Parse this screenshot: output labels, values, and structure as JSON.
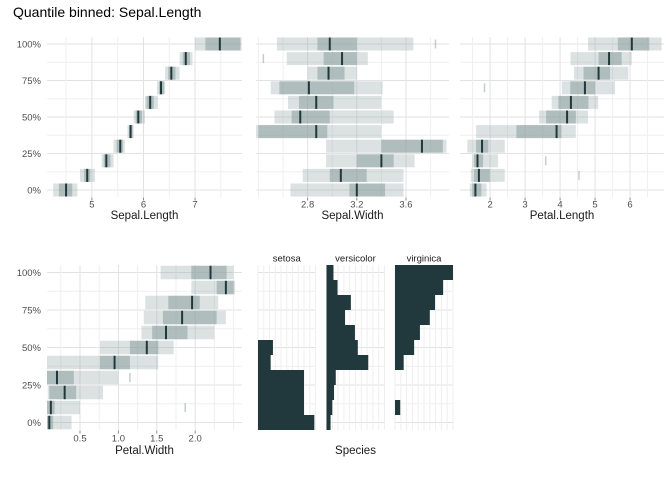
{
  "title": "Quantile binned: Sepal.Length",
  "y_axis": {
    "tick_labels": [
      "100%",
      "75%",
      "50%",
      "25%",
      "0%"
    ],
    "tick_values": [
      100,
      75,
      50,
      25,
      0
    ],
    "minor_values": [
      87.5,
      62.5,
      37.5,
      12.5
    ]
  },
  "quantile_levels": [
    100,
    90,
    80,
    70,
    60,
    50,
    40,
    30,
    20,
    10,
    0
  ],
  "colors": {
    "band_base": "#8c9e9e",
    "median_line": "#20383b",
    "bar": "#21393d",
    "grid_major": "#e2e2e2",
    "grid_minor": "#efefef",
    "axis_text": "#4d4d4d",
    "title_text": "#000000",
    "tick_mark": "#8a8a8a"
  },
  "chart_data": [
    {
      "type": "quantile-band",
      "id": "sepal-length",
      "xlabel": "Sepal.Length",
      "xlim": [
        4.13,
        7.91
      ],
      "x_major": [
        5,
        6,
        7
      ],
      "x_major_labels": [
        "5",
        "6",
        "7"
      ],
      "x_minor": [
        4.5,
        5.5,
        6.5,
        7.5
      ],
      "rows": [
        {
          "q": 100,
          "outer": [
            7.0,
            7.9
          ],
          "inner": [
            7.2,
            7.88
          ],
          "median": 7.48
        },
        {
          "q": 90,
          "outer": [
            6.7,
            6.95
          ],
          "inner": [
            6.76,
            6.9
          ],
          "median": 6.82
        },
        {
          "q": 80,
          "outer": [
            6.42,
            6.7
          ],
          "inner": [
            6.48,
            6.62
          ],
          "median": 6.54
        },
        {
          "q": 70,
          "outer": [
            6.26,
            6.42
          ],
          "inner": [
            6.3,
            6.4
          ],
          "median": 6.34
        },
        {
          "q": 60,
          "outer": [
            6.03,
            6.28
          ],
          "inner": [
            6.06,
            6.2
          ],
          "median": 6.13
        },
        {
          "q": 50,
          "outer": [
            5.81,
            6.03
          ],
          "inner": [
            5.85,
            5.97
          ],
          "median": 5.9
        },
        {
          "q": 40,
          "outer": [
            5.69,
            5.81
          ],
          "inner": [
            5.72,
            5.79
          ],
          "median": 5.75
        },
        {
          "q": 30,
          "outer": [
            5.42,
            5.64
          ],
          "inner": [
            5.48,
            5.6
          ],
          "median": 5.55
        },
        {
          "q": 20,
          "outer": [
            5.19,
            5.42
          ],
          "inner": [
            5.23,
            5.36
          ],
          "median": 5.28
        },
        {
          "q": 10,
          "outer": [
            4.77,
            5.06
          ],
          "inner": [
            4.85,
            4.97
          ],
          "median": 4.91
        },
        {
          "q": 0,
          "outer": [
            4.25,
            4.72
          ],
          "inner": [
            4.36,
            4.62
          ],
          "median": 4.5
        }
      ]
    },
    {
      "type": "quantile-band",
      "id": "sepal-width",
      "xlabel": "Sepal.Width",
      "xlim": [
        2.38,
        3.95
      ],
      "x_major": [
        2.8,
        3.2,
        3.6
      ],
      "x_major_labels": [
        "2.8",
        "3.2",
        "3.6"
      ],
      "x_minor": [
        2.4,
        2.6,
        3.0,
        3.4,
        3.8
      ],
      "rows": [
        {
          "q": 100,
          "outer": [
            2.55,
            3.66
          ],
          "inner": [
            2.88,
            3.2
          ],
          "median": 2.98,
          "ticks": [
            3.84
          ]
        },
        {
          "q": 90,
          "outer": [
            2.63,
            3.29
          ],
          "inner": [
            2.93,
            3.2
          ],
          "median": 3.08,
          "ticks": [
            2.44
          ]
        },
        {
          "q": 80,
          "outer": [
            2.8,
            3.2
          ],
          "inner": [
            2.88,
            3.1
          ],
          "median": 2.97
        },
        {
          "q": 70,
          "outer": [
            2.5,
            3.41
          ],
          "inner": [
            2.57,
            3.18
          ],
          "median": 2.81
        },
        {
          "q": 60,
          "outer": [
            2.64,
            3.4
          ],
          "inner": [
            2.73,
            3.01
          ],
          "median": 2.87
        },
        {
          "q": 50,
          "outer": [
            2.53,
            3.5
          ],
          "inner": [
            2.67,
            2.98
          ],
          "median": 2.74
        },
        {
          "q": 40,
          "outer": [
            2.38,
            3.4
          ],
          "inner": [
            2.4,
            2.96
          ],
          "median": 2.87
        },
        {
          "q": 30,
          "outer": [
            2.95,
            3.93
          ],
          "inner": [
            3.4,
            3.9
          ],
          "median": 3.73
        },
        {
          "q": 20,
          "outer": [
            2.95,
            3.67
          ],
          "inner": [
            3.2,
            3.5
          ],
          "median": 3.4
        },
        {
          "q": 10,
          "outer": [
            2.76,
            3.58
          ],
          "inner": [
            2.98,
            3.28
          ],
          "median": 3.07
        },
        {
          "q": 0,
          "outer": [
            2.66,
            3.58
          ],
          "inner": [
            3.14,
            3.43
          ],
          "median": 3.2
        }
      ]
    },
    {
      "type": "quantile-band",
      "id": "petal-length",
      "xlabel": "Petal.Length",
      "xlim": [
        1.14,
        6.97
      ],
      "x_major": [
        2,
        3,
        4,
        5,
        6
      ],
      "x_major_labels": [
        "2",
        "3",
        "4",
        "5",
        "6"
      ],
      "x_minor": [
        1.5,
        2.5,
        3.5,
        4.5,
        5.5,
        6.5
      ],
      "rows": [
        {
          "q": 100,
          "outer": [
            4.8,
            6.9
          ],
          "inner": [
            5.65,
            6.55
          ],
          "median": 6.05
        },
        {
          "q": 90,
          "outer": [
            4.3,
            6.05
          ],
          "inner": [
            5.1,
            5.76
          ],
          "median": 5.4
        },
        {
          "q": 80,
          "outer": [
            4.4,
            5.95
          ],
          "inner": [
            4.67,
            5.43
          ],
          "median": 5.1
        },
        {
          "q": 70,
          "outer": [
            4.05,
            5.57
          ],
          "inner": [
            4.29,
            5.0
          ],
          "median": 4.71,
          "ticks": [
            1.84
          ]
        },
        {
          "q": 60,
          "outer": [
            3.76,
            5.09
          ],
          "inner": [
            3.95,
            4.81
          ],
          "median": 4.31
        },
        {
          "q": 50,
          "outer": [
            3.4,
            4.8
          ],
          "inner": [
            3.6,
            4.45
          ],
          "median": 4.2
        },
        {
          "q": 40,
          "outer": [
            1.6,
            4.45
          ],
          "inner": [
            2.75,
            4.04
          ],
          "median": 3.9
        },
        {
          "q": 30,
          "outer": [
            1.35,
            2.42
          ],
          "inner": [
            1.6,
            1.95
          ],
          "median": 1.77
        },
        {
          "q": 20,
          "outer": [
            1.49,
            2.23
          ],
          "inner": [
            1.54,
            1.8
          ],
          "median": 1.64,
          "ticks": [
            3.59
          ]
        },
        {
          "q": 10,
          "outer": [
            1.45,
            2.42
          ],
          "inner": [
            1.54,
            1.99
          ],
          "median": 1.68,
          "ticks": [
            4.54
          ]
        },
        {
          "q": 0,
          "outer": [
            1.42,
            1.9
          ],
          "inner": [
            1.49,
            1.75
          ],
          "median": 1.58
        }
      ]
    },
    {
      "type": "quantile-band",
      "id": "petal-width",
      "xlabel": "Petal.Width",
      "xlim": [
        0.07,
        2.61
      ],
      "x_major": [
        0.5,
        1.0,
        1.5,
        2.0
      ],
      "x_major_labels": [
        "0.5",
        "1.0",
        "1.5",
        "2.0"
      ],
      "x_minor": [
        0.25,
        0.75,
        1.25,
        1.75,
        2.25,
        2.5
      ],
      "rows": [
        {
          "q": 100,
          "outer": [
            1.55,
            2.5
          ],
          "inner": [
            1.95,
            2.41
          ],
          "median": 2.2
        },
        {
          "q": 90,
          "outer": [
            1.95,
            2.52
          ],
          "inner": [
            2.28,
            2.5
          ],
          "median": 2.4
        },
        {
          "q": 80,
          "outer": [
            1.35,
            2.3
          ],
          "inner": [
            1.65,
            2.06
          ],
          "median": 1.96
        },
        {
          "q": 70,
          "outer": [
            1.33,
            2.4
          ],
          "inner": [
            1.58,
            2.28
          ],
          "median": 1.83
        },
        {
          "q": 60,
          "outer": [
            1.3,
            2.25
          ],
          "inner": [
            1.44,
            1.9
          ],
          "median": 1.62
        },
        {
          "q": 50,
          "outer": [
            0.76,
            1.72
          ],
          "inner": [
            1.15,
            1.52
          ],
          "median": 1.37
        },
        {
          "q": 40,
          "outer": [
            0.07,
            1.52
          ],
          "inner": [
            0.76,
            1.15
          ],
          "median": 0.95
        },
        {
          "q": 30,
          "outer": [
            0.05,
            1.0
          ],
          "inner": [
            0.05,
            0.42
          ],
          "median": 0.2,
          "ticks": [
            1.15
          ]
        },
        {
          "q": 20,
          "outer": [
            0.08,
            0.8
          ],
          "inner": [
            0.1,
            0.45
          ],
          "median": 0.3
        },
        {
          "q": 10,
          "outer": [
            0.05,
            0.5
          ],
          "inner": [
            0.05,
            0.17
          ],
          "median": 0.12,
          "ticks": [
            1.87
          ]
        },
        {
          "q": 0,
          "outer": [
            0.07,
            0.39
          ],
          "inner": [
            0.07,
            0.15
          ],
          "median": 0.1
        }
      ]
    },
    {
      "type": "histogram-facets",
      "id": "species",
      "xlabel": "Species",
      "facets": [
        {
          "label": "setosa",
          "fracs": [
            0,
            0,
            0,
            0,
            0,
            0.26,
            0.22,
            0.8,
            0.8,
            0.8,
            0.98
          ]
        },
        {
          "label": "versicolor",
          "fracs": [
            0.12,
            0.19,
            0.42,
            0.32,
            0.49,
            0.54,
            0.72,
            0.16,
            0.13,
            0.1,
            0.07
          ]
        },
        {
          "label": "virginica",
          "fracs": [
            1.0,
            0.83,
            0.69,
            0.6,
            0.43,
            0.33,
            0.15,
            0,
            0,
            0.09,
            0
          ]
        }
      ]
    }
  ]
}
